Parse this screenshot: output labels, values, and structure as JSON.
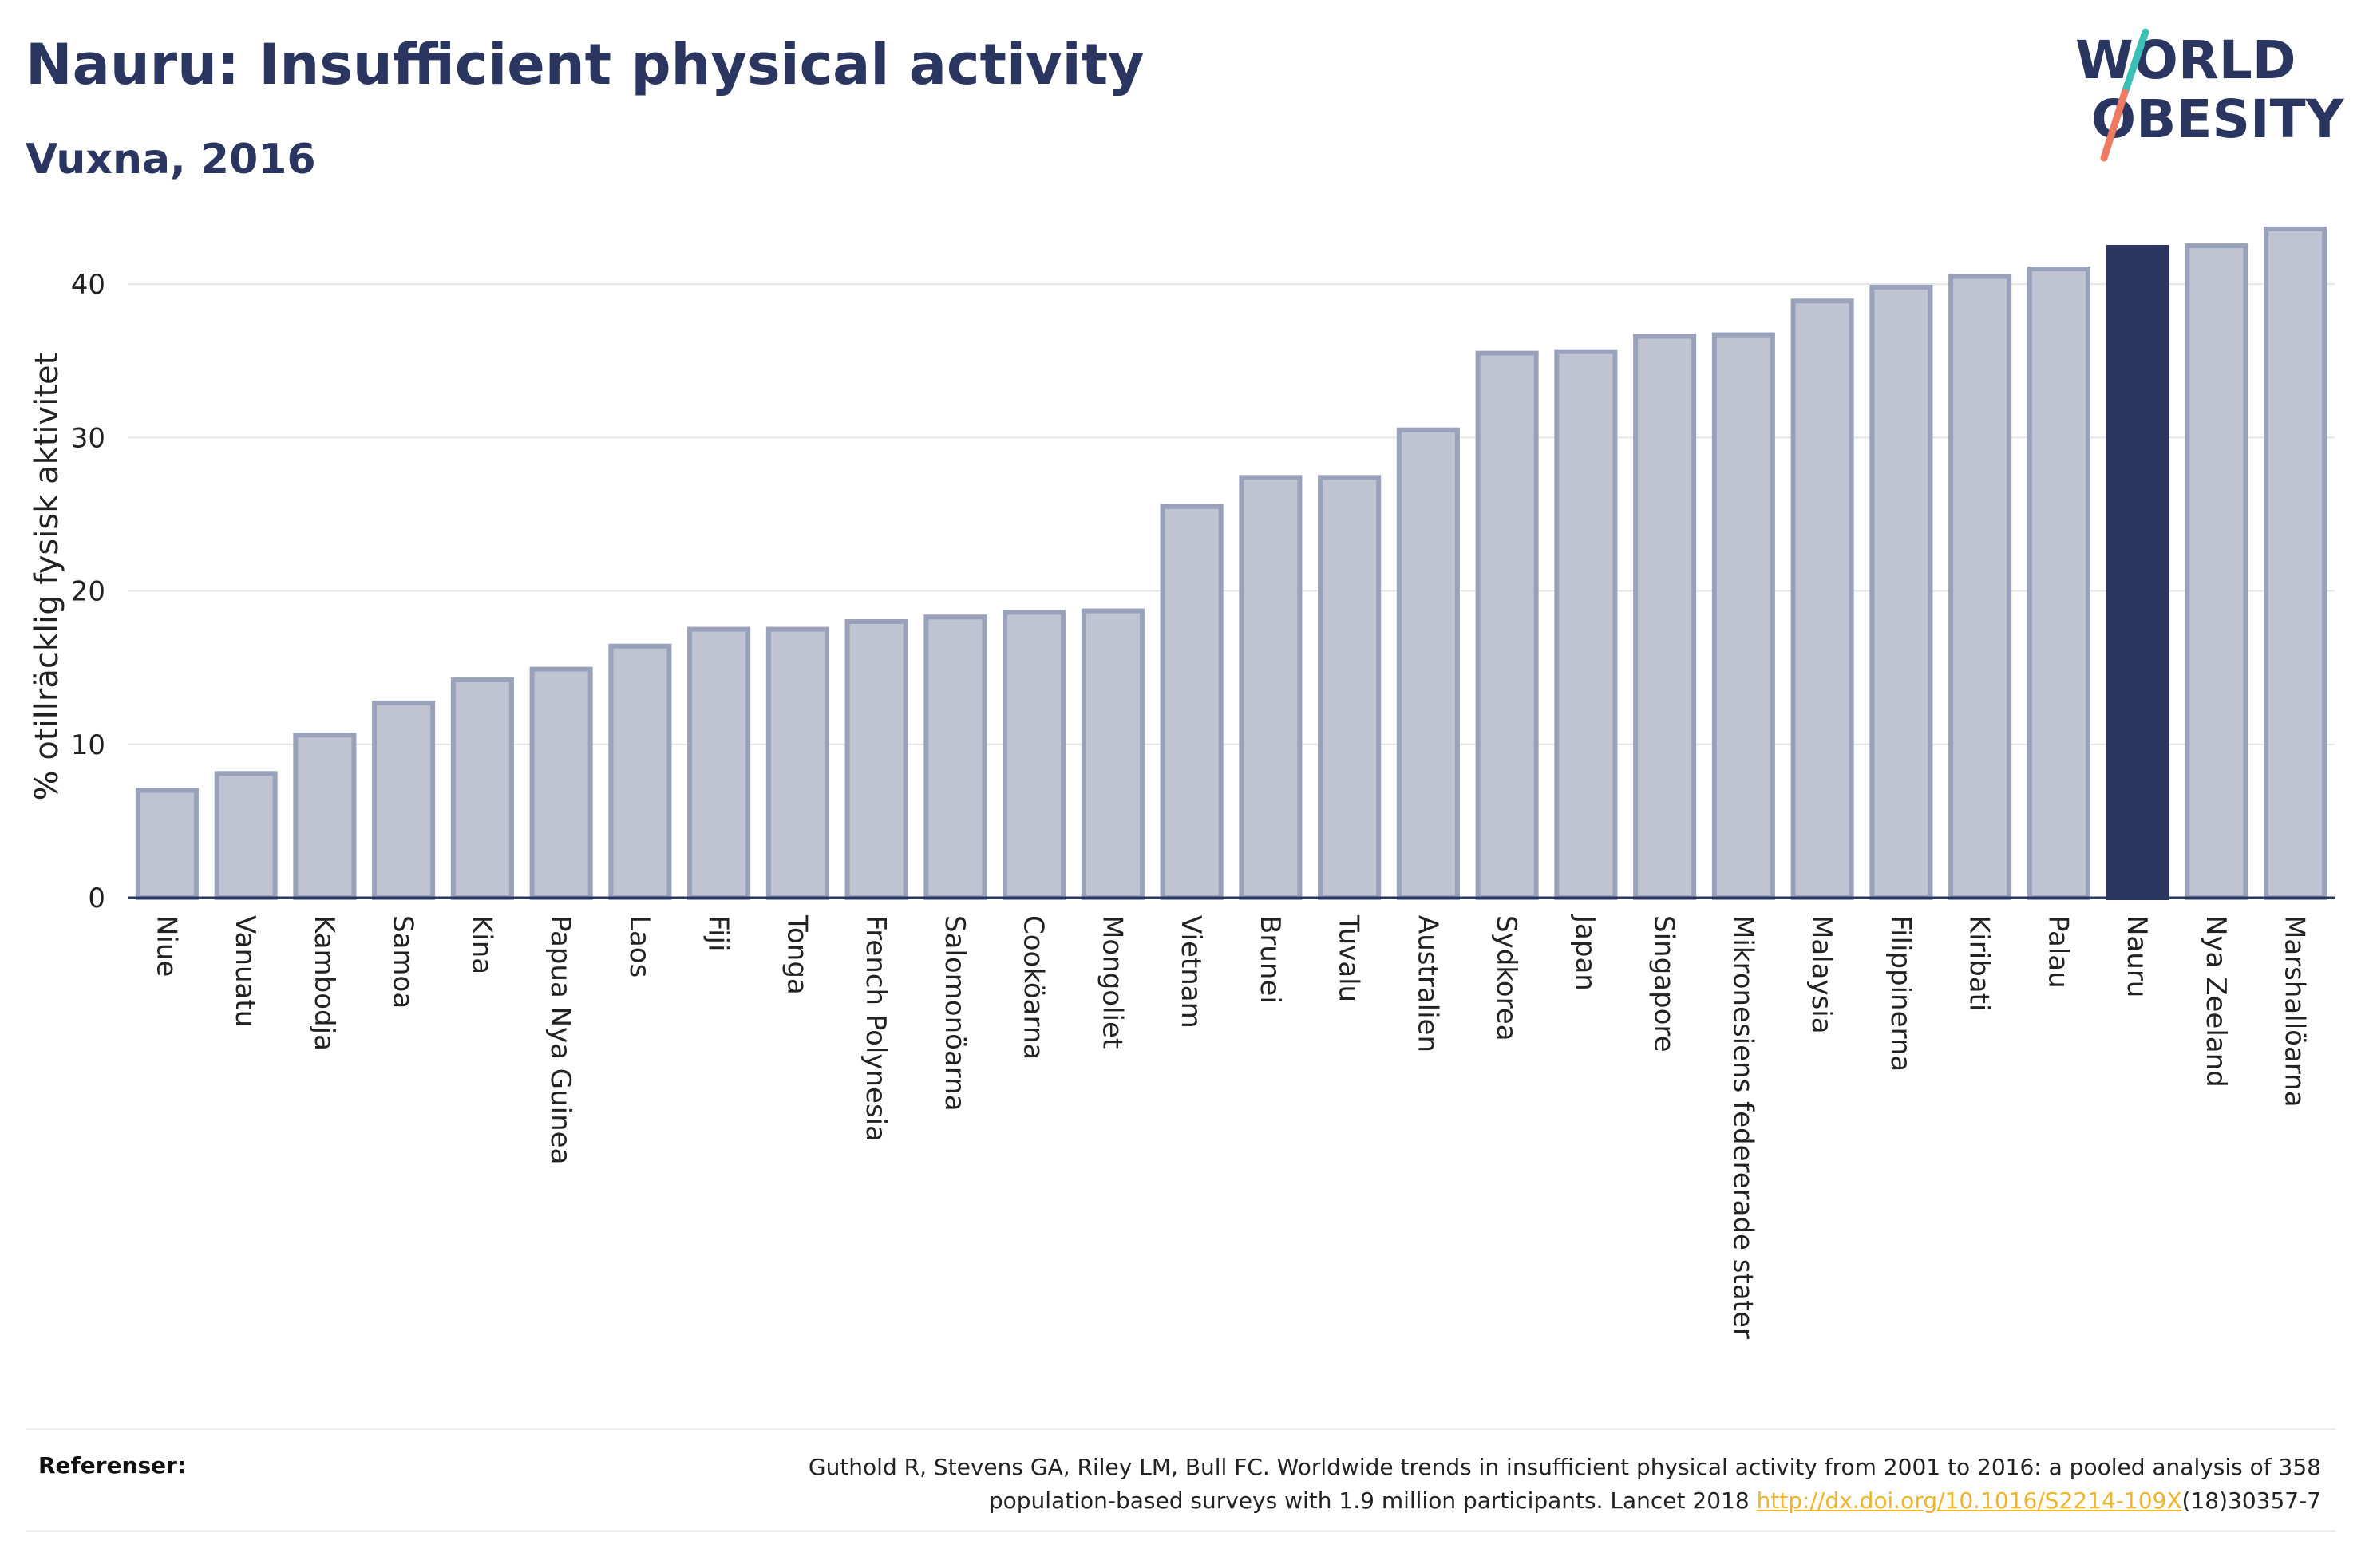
{
  "header": {
    "title": "Nauru: Insufficient physical activity",
    "subtitle": "Vuxna, 2016"
  },
  "logo": {
    "line1": "WORLD",
    "line2": "OBESITY"
  },
  "colors": {
    "bar_default": "#bfc3d2",
    "bar_default_border": "#9aa1ba",
    "bar_highlight": "#2a3560",
    "grid": "#e6e6e6",
    "axis": "#2a3560",
    "logo_teal": "#3cbfb4",
    "logo_coral": "#ef7a63"
  },
  "chart_data": {
    "type": "bar",
    "title": "Nauru: Insufficient physical activity",
    "subtitle": "Vuxna, 2016",
    "xlabel": "",
    "ylabel": "% otillräcklig fysisk aktivitet",
    "ylim": [
      0,
      45
    ],
    "yticks": [
      0,
      10,
      20,
      30,
      40
    ],
    "grid": true,
    "highlight": "Nauru",
    "categories": [
      "Niue",
      "Vanuatu",
      "Kambodja",
      "Samoa",
      "Kina",
      "Papua Nya Guinea",
      "Laos",
      "Fiji",
      "Tonga",
      "French Polynesia",
      "Salomonöarna",
      "Cooköarna",
      "Mongoliet",
      "Vietnam",
      "Brunei",
      "Tuvalu",
      "Australien",
      "Sydkorea",
      "Japan",
      "Singapore",
      "Mikronesiens federerade stater",
      "Malaysia",
      "Filippinerna",
      "Kiribati",
      "Palau",
      "Nauru",
      "Nya Zeeland",
      "Marshallöarna"
    ],
    "values": [
      7.0,
      8.1,
      10.6,
      12.7,
      14.2,
      14.9,
      16.4,
      17.5,
      17.5,
      18.0,
      18.3,
      18.6,
      18.7,
      25.5,
      27.4,
      27.4,
      30.5,
      35.5,
      35.6,
      36.6,
      36.7,
      38.9,
      39.8,
      40.5,
      41.0,
      42.4,
      42.5,
      43.6
    ]
  },
  "footer": {
    "ref_label": "Referenser:",
    "ref_text_1": "Guthold R, Stevens GA, Riley LM, Bull FC. Worldwide trends in insufficient physical activity from 2001 to 2016: a pooled analysis of 358",
    "ref_text_2": "population-based surveys with 1.9 million participants. Lancet 2018 ",
    "ref_link": "http://dx.doi.org/10.1016/S2214-109X",
    "ref_text_3": "(18)30357-7"
  }
}
